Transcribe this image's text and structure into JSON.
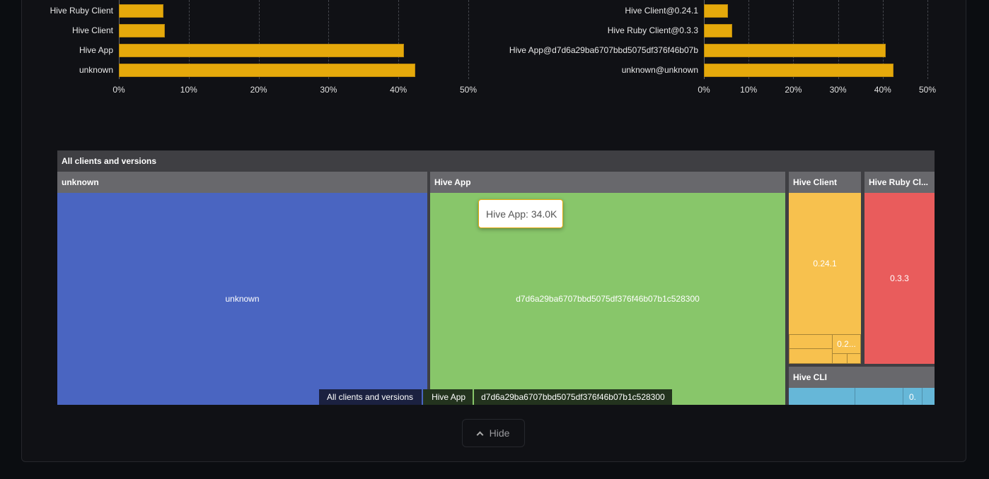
{
  "chart_data": [
    {
      "type": "bar",
      "orientation": "horizontal",
      "categories": [
        "Hive Ruby Client",
        "Hive Client",
        "Hive App",
        "unknown"
      ],
      "values": [
        6.4,
        6.6,
        40.8,
        42.4
      ],
      "xlim": [
        0,
        50
      ],
      "xticks": [
        "0%",
        "10%",
        "20%",
        "30%",
        "40%",
        "50%"
      ],
      "grid": true,
      "color": "#e5a90b"
    },
    {
      "type": "bar",
      "orientation": "horizontal",
      "categories": [
        "Hive Client@0.24.1",
        "Hive Ruby Client@0.3.3",
        "Hive App@d7d6a29ba6707bbd5075df376f46b07b",
        "unknown@unknown"
      ],
      "values": [
        5.4,
        6.3,
        40.7,
        42.4
      ],
      "xlim": [
        0,
        50
      ],
      "xticks": [
        "0%",
        "10%",
        "20%",
        "30%",
        "40%",
        "50%"
      ],
      "grid": true,
      "color": "#e5a90b"
    }
  ],
  "treemap": {
    "root": "All clients and versions",
    "groups": [
      {
        "name": "unknown",
        "child": "unknown",
        "color": "#4a65c1"
      },
      {
        "name": "Hive App",
        "child": "d7d6a29ba6707bbd5075df376f46b07b1c528300",
        "color": "#88c66a"
      },
      {
        "name": "Hive Client",
        "child": "0.24.1",
        "small": "0.2...",
        "color": "#f7c14e"
      },
      {
        "name": "Hive Ruby Cl...",
        "child": "0.3.3",
        "color": "#e95c5c"
      },
      {
        "name": "Hive CLI",
        "child": "0.",
        "color": "#66b7d8"
      }
    ],
    "tooltip": "Hive App: 34.0K",
    "breadcrumb": [
      "All clients and versions",
      "Hive App",
      "d7d6a29ba6707bbd5075df376f46b07b1c528300"
    ]
  },
  "hide_button": {
    "label": "Hide",
    "icon": "chevron-up-icon"
  }
}
